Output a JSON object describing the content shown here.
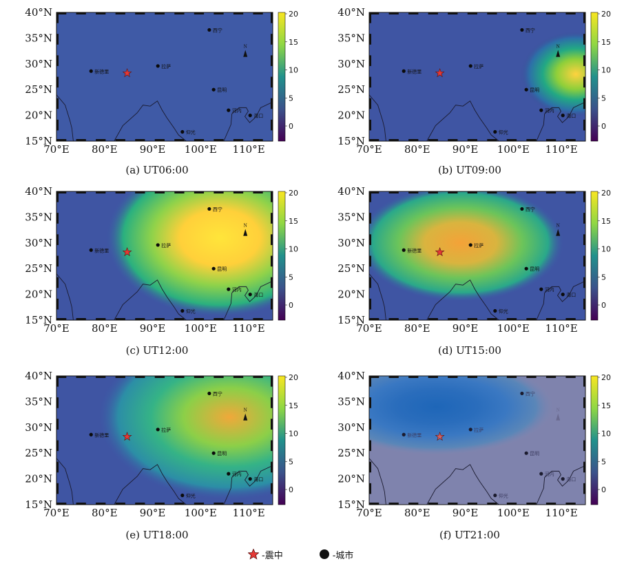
{
  "colorbar": {
    "ticks": [
      "20",
      "15",
      "10",
      "5",
      "0"
    ]
  },
  "lat_labels": [
    "40°N",
    "35°N",
    "30°N",
    "25°N",
    "20°N",
    "15°N"
  ],
  "lon_labels": [
    "70°E",
    "80°E",
    "90°E",
    "100°E",
    "110°E"
  ],
  "north_label": "N",
  "epicenter_color": "#e53935",
  "cities": [
    {
      "name": "新德里"
    },
    {
      "name": "拉萨"
    },
    {
      "name": "西宁"
    },
    {
      "name": "昆明"
    },
    {
      "name": "河内"
    },
    {
      "name": "海口"
    },
    {
      "name": "仰光"
    }
  ],
  "panels": [
    {
      "id": "a",
      "caption": "(a) UT06:00"
    },
    {
      "id": "b",
      "caption": "(b) UT09:00"
    },
    {
      "id": "c",
      "caption": "(c) UT12:00"
    },
    {
      "id": "d",
      "caption": "(d) UT15:00"
    },
    {
      "id": "e",
      "caption": "(e) UT18:00"
    },
    {
      "id": "f",
      "caption": "(f) UT21:00"
    }
  ],
  "legend": {
    "epicenter": "-震中",
    "city": "-城市"
  }
}
